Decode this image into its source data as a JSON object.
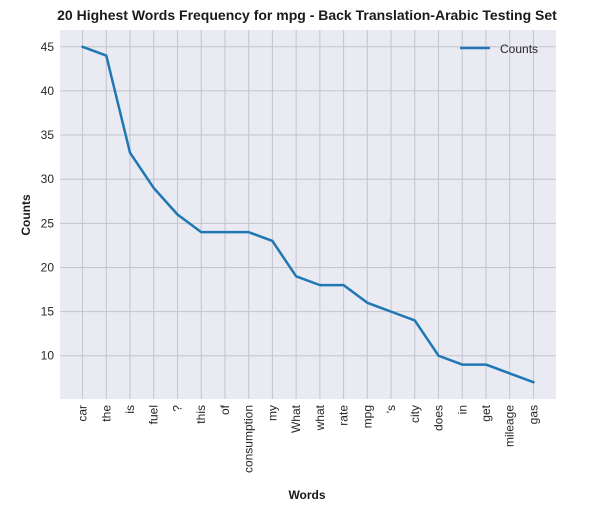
{
  "chart_data": {
    "type": "line",
    "title": "20 Highest Words Frequency for mpg - Back Translation-Arabic Testing Set",
    "xlabel": "Words",
    "ylabel": "Counts",
    "categories": [
      "car",
      "the",
      "is",
      "fuel",
      "?",
      "this",
      "of",
      "consumption",
      "my",
      "What",
      "what",
      "rate",
      "mpg",
      "'s",
      "city",
      "does",
      "in",
      "get",
      "mileage",
      "gas"
    ],
    "series": [
      {
        "name": "Counts",
        "values": [
          45,
          44,
          33,
          29,
          26,
          24,
          24,
          24,
          23,
          19,
          18,
          18,
          16,
          15,
          14,
          10,
          9,
          9,
          8,
          7
        ]
      }
    ],
    "ylim": [
      5.1,
      46.9
    ],
    "yticks": [
      10,
      15,
      20,
      25,
      30,
      35,
      40,
      45
    ],
    "grid": true,
    "legend_position": "top-right",
    "colors": {
      "line": "#1f77b4",
      "plot_bg": "#eaeaf2",
      "grid": "#c4c4cc"
    }
  }
}
